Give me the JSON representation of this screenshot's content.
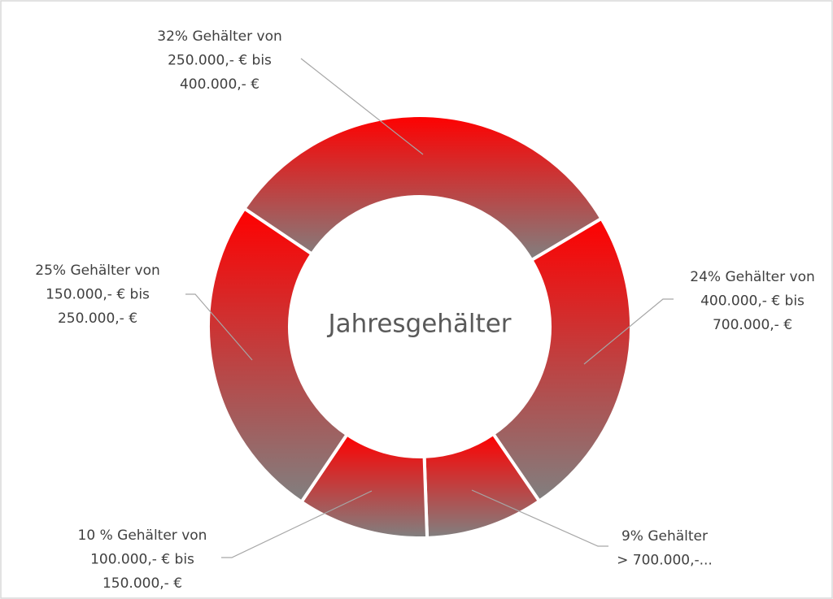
{
  "chart_data": {
    "type": "donut",
    "title": "Jahresgehälter",
    "labels": [
      [
        "32% Gehälter von",
        "250.000,- € bis",
        "400.000,- €"
      ],
      [
        "24% Gehälter von",
        "400.000,- € bis",
        "700.000,- €"
      ],
      [
        "9% Gehälter",
        "> 700.000,-..."
      ],
      [
        "10 % Gehälter von",
        "100.000,- € bis",
        "150.000,- €"
      ],
      [
        "25% Gehälter von",
        "150.000,- € bis",
        "250.000,- €"
      ]
    ],
    "values": [
      32,
      24,
      9,
      10,
      25
    ],
    "gradient": [
      "#ff0000",
      "#808080"
    ]
  }
}
